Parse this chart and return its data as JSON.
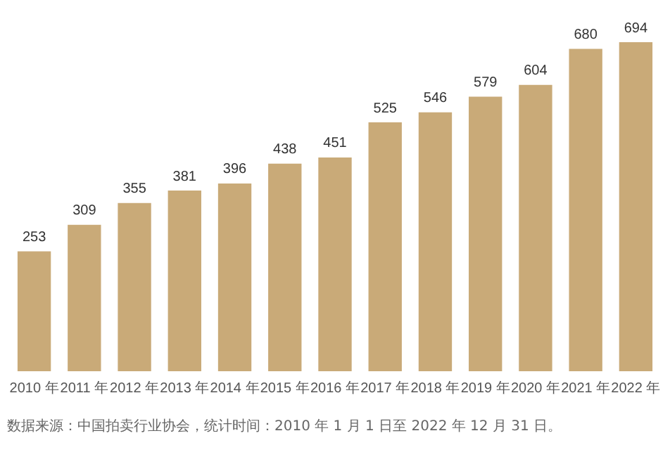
{
  "chart_data": {
    "type": "bar",
    "categories": [
      "2010 年",
      "2011 年",
      "2012 年",
      "2013 年",
      "2014 年",
      "2015 年",
      "2016 年",
      "2017 年",
      "2018 年",
      "2019 年",
      "2020 年",
      "2021 年",
      "2022 年"
    ],
    "values": [
      253,
      309,
      355,
      381,
      396,
      438,
      451,
      525,
      546,
      579,
      604,
      680,
      694
    ],
    "color": "#c9aa78",
    "data_labels": true,
    "grid": false,
    "legend": false,
    "tick_labels": "x",
    "annotations": [
      "数据来源：中国拍卖行业协会，统计时间：2010 年 1 月 1 日至 2022 年 12 月 31 日。"
    ]
  }
}
